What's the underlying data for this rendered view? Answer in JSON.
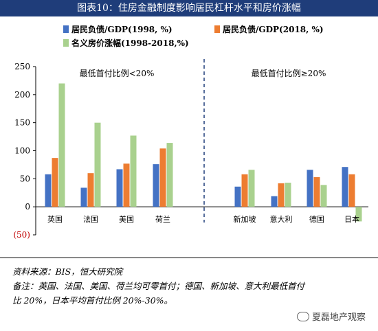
{
  "title": "图表10：住房金融制度影响居民杠杆水平和房价涨幅",
  "chart_data": {
    "type": "bar",
    "categories": [
      "英国",
      "法国",
      "美国",
      "荷兰",
      "新加坡",
      "意大利",
      "德国",
      "日本"
    ],
    "series": [
      {
        "name": "居民负债/GDP(1998, %)",
        "color": "#4472c4",
        "values": [
          58,
          34,
          67,
          76,
          36,
          19,
          66,
          71
        ]
      },
      {
        "name": "居民负债/GDP(2018, %)",
        "color": "#ed7d31",
        "values": [
          87,
          60,
          77,
          104,
          58,
          42,
          53,
          58
        ]
      },
      {
        "name": "名义房价涨幅(1998-2018,%)",
        "color": "#a9d18e",
        "values": [
          220,
          150,
          127,
          114,
          66,
          43,
          39,
          -26
        ]
      }
    ],
    "ylim": [
      -50,
      250
    ],
    "yticks": [
      -50,
      0,
      50,
      100,
      150,
      200,
      250
    ],
    "ytick_labels": [
      "(50)",
      "0",
      "50",
      "100",
      "150",
      "200",
      "250"
    ],
    "annotations": [
      "最低首付比例<20%",
      "最低首付比例≥20%"
    ],
    "xlabel": "",
    "ylabel": ""
  },
  "notes": {
    "source": "资料来源：BIS，恒大研究院",
    "remark_line1": "备注：英国、法国、美国、荷兰均可零首付；德国、新加坡、意大利最低首付",
    "remark_line2": "比 20%，日本平均首付比例 20%-30%。"
  },
  "watermark": "夏磊地产观察"
}
